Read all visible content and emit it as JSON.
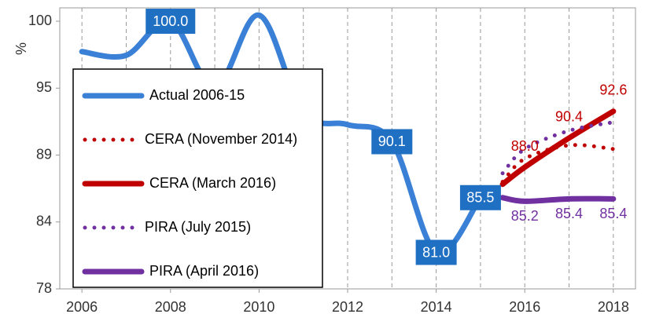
{
  "chart_data": {
    "type": "line",
    "y_label": "%",
    "xlim": [
      2005.5,
      2018.5
    ],
    "xticks": [
      2006,
      2008,
      2010,
      2012,
      2014,
      2016,
      2018
    ],
    "xgrid": [
      2006,
      2007,
      2008,
      2009,
      2010,
      2011,
      2012,
      2013,
      2014,
      2015,
      2016,
      2017,
      2018
    ],
    "ylim": [
      78,
      101.1
    ],
    "yticks": [
      78,
      {
        "value": 83.5,
        "label": "84"
      },
      89,
      {
        "value": 94.5,
        "label": "95"
      },
      100
    ],
    "legend": "left",
    "series": [
      {
        "name": "Actual 2006-15",
        "color": "#3a80d6",
        "style": "solid",
        "label_box": true,
        "x": [
          2006,
          2007,
          2008,
          2009,
          2010,
          2011,
          2012,
          2013,
          2014,
          2015
        ],
        "values": [
          97.5,
          97.2,
          100.0,
          94.5,
          100.5,
          92.5,
          91.5,
          90.1,
          81.0,
          85.5
        ],
        "value_labels": [
          null,
          null,
          "100.0",
          null,
          null,
          null,
          null,
          "90.1",
          "81.0",
          "85.5"
        ]
      },
      {
        "name": "CERA (November 2014)",
        "color": "#c00000",
        "style": "dotted",
        "x": [
          2015.5,
          2016,
          2017,
          2018
        ],
        "values": [
          86.8,
          88.7,
          89.8,
          89.5
        ]
      },
      {
        "name": "CERA (March 2016)",
        "color": "#c00000",
        "style": "solid",
        "x": [
          2015.5,
          2016,
          2017,
          2018
        ],
        "values": [
          86.6,
          88.0,
          90.4,
          92.6
        ],
        "value_labels": [
          null,
          "88.0",
          "90.4",
          "92.6"
        ]
      },
      {
        "name": "PIRA (July 2015)",
        "color": "#7030a0",
        "style": "dotted",
        "x": [
          2015.5,
          2016,
          2017,
          2018
        ],
        "values": [
          87.5,
          89.5,
          91.0,
          91.7
        ]
      },
      {
        "name": "PIRA (April 2016)",
        "color": "#7030a0",
        "style": "solid",
        "x": [
          2015.5,
          2016,
          2017,
          2018
        ],
        "values": [
          85.5,
          85.2,
          85.4,
          85.4
        ],
        "value_labels": [
          null,
          "85.2",
          "85.4",
          "85.4"
        ]
      }
    ]
  }
}
